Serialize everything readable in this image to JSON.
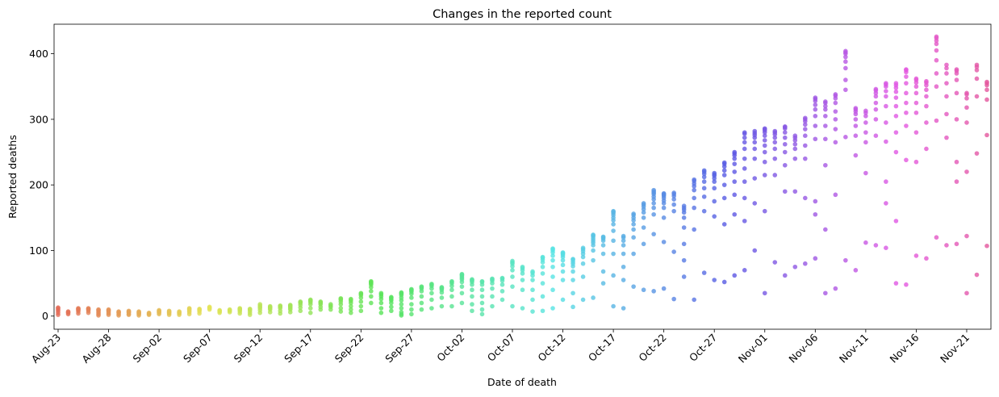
{
  "chart_data": {
    "type": "scatter",
    "title": "Changes in the reported count",
    "xlabel": "Date of death",
    "ylabel": "Reported deaths",
    "x_start": "Aug-23",
    "x_end": "Nov-22",
    "x_tick_labels": [
      "Aug-23",
      "Aug-28",
      "Sep-02",
      "Sep-07",
      "Sep-12",
      "Sep-17",
      "Sep-22",
      "Sep-27",
      "Oct-02",
      "Oct-07",
      "Oct-12",
      "Oct-17",
      "Oct-22",
      "Oct-27",
      "Nov-01",
      "Nov-06",
      "Nov-11",
      "Nov-16",
      "Nov-21"
    ],
    "y_ticks": [
      0,
      100,
      200,
      300,
      400
    ],
    "ylim": [
      -20,
      445
    ],
    "grid": false,
    "legend": "none",
    "marker_alpha": 0.8,
    "palette_note": "hue cycles by date from coral through olive, green, teal, blue, purple to pink",
    "points": [
      [
        "Aug-23",
        [
          2,
          5,
          8,
          10,
          12,
          13
        ]
      ],
      [
        "Aug-24",
        [
          3,
          5,
          6,
          7
        ]
      ],
      [
        "Aug-25",
        [
          4,
          7,
          9,
          10,
          11,
          12
        ]
      ],
      [
        "Aug-26",
        [
          5,
          8,
          10,
          11,
          12
        ]
      ],
      [
        "Aug-27",
        [
          1,
          3,
          5,
          7,
          9,
          10
        ]
      ],
      [
        "Aug-28",
        [
          2,
          4,
          6,
          8,
          9,
          10
        ]
      ],
      [
        "Aug-29",
        [
          1,
          3,
          5,
          6,
          7
        ]
      ],
      [
        "Aug-30",
        [
          2,
          3,
          5,
          6,
          7,
          8
        ]
      ],
      [
        "Aug-31",
        [
          1,
          3,
          4,
          5,
          6,
          7
        ]
      ],
      [
        "Sep-01",
        [
          2,
          3,
          4,
          5
        ]
      ],
      [
        "Sep-02",
        [
          3,
          5,
          6,
          7,
          8,
          9
        ]
      ],
      [
        "Sep-03",
        [
          2,
          4,
          5,
          6,
          7,
          8
        ]
      ],
      [
        "Sep-04",
        [
          2,
          4,
          5,
          6,
          7
        ]
      ],
      [
        "Sep-05",
        [
          3,
          6,
          8,
          10,
          11,
          12
        ]
      ],
      [
        "Sep-06",
        [
          4,
          7,
          9,
          10,
          11
        ]
      ],
      [
        "Sep-07",
        [
          10,
          12,
          13,
          14
        ]
      ],
      [
        "Sep-08",
        [
          5,
          7,
          8,
          9
        ]
      ],
      [
        "Sep-09",
        [
          6,
          8,
          9,
          10
        ]
      ],
      [
        "Sep-10",
        [
          4,
          7,
          9,
          10,
          11,
          12
        ]
      ],
      [
        "Sep-11",
        [
          2,
          5,
          8,
          10,
          11
        ]
      ],
      [
        "Sep-12",
        [
          5,
          9,
          12,
          14,
          16,
          18
        ]
      ],
      [
        "Sep-13",
        [
          6,
          10,
          12,
          13,
          14,
          15
        ]
      ],
      [
        "Sep-14",
        [
          4,
          8,
          12,
          14,
          15,
          16
        ]
      ],
      [
        "Sep-15",
        [
          6,
          10,
          12,
          14,
          15,
          16,
          17
        ]
      ],
      [
        "Sep-16",
        [
          8,
          13,
          17,
          20,
          21,
          22
        ]
      ],
      [
        "Sep-17",
        [
          5,
          12,
          18,
          21,
          23,
          24,
          25
        ]
      ],
      [
        "Sep-18",
        [
          10,
          14,
          18,
          20,
          21,
          22
        ]
      ],
      [
        "Sep-19",
        [
          10,
          14,
          16,
          18
        ]
      ],
      [
        "Sep-20",
        [
          7,
          12,
          18,
          22,
          25,
          26,
          27
        ]
      ],
      [
        "Sep-21",
        [
          5,
          10,
          15,
          20,
          23,
          25,
          26
        ]
      ],
      [
        "Sep-22",
        [
          8,
          15,
          22,
          28,
          32,
          34,
          35
        ]
      ],
      [
        "Sep-23",
        [
          20,
          30,
          38,
          44,
          48,
          50,
          51,
          52,
          53
        ]
      ],
      [
        "Sep-24",
        [
          5,
          12,
          20,
          26,
          30,
          33,
          35
        ]
      ],
      [
        "Sep-25",
        [
          8,
          14,
          20,
          24,
          26,
          28,
          29
        ]
      ],
      [
        "Sep-26",
        [
          1,
          3,
          6,
          12,
          18,
          24,
          28,
          32,
          34,
          35,
          36
        ]
      ],
      [
        "Sep-27",
        [
          3,
          10,
          18,
          28,
          34,
          37,
          39,
          40,
          41
        ]
      ],
      [
        "Sep-28",
        [
          10,
          20,
          30,
          38,
          42,
          44,
          45
        ]
      ],
      [
        "Sep-29",
        [
          12,
          25,
          35,
          42,
          46,
          48,
          49
        ]
      ],
      [
        "Sep-30",
        [
          15,
          28,
          36,
          40,
          42,
          43,
          44
        ]
      ],
      [
        "Oct-01",
        [
          15,
          30,
          40,
          46,
          50,
          52,
          53
        ]
      ],
      [
        "Oct-02",
        [
          20,
          35,
          45,
          52,
          56,
          58,
          60,
          62,
          63,
          64
        ]
      ],
      [
        "Oct-03",
        [
          8,
          18,
          30,
          40,
          48,
          52,
          54,
          55,
          56
        ]
      ],
      [
        "Oct-04",
        [
          3,
          10,
          20,
          30,
          40,
          48,
          52,
          53
        ]
      ],
      [
        "Oct-05",
        [
          15,
          30,
          42,
          50,
          54,
          56,
          57
        ]
      ],
      [
        "Oct-06",
        [
          25,
          38,
          48,
          54,
          57,
          58
        ]
      ],
      [
        "Oct-07",
        [
          15,
          45,
          60,
          70,
          76,
          80,
          82,
          84
        ]
      ],
      [
        "Oct-08",
        [
          12,
          40,
          55,
          65,
          70,
          73,
          75
        ]
      ],
      [
        "Oct-09",
        [
          7,
          25,
          40,
          55,
          62,
          66,
          68
        ]
      ],
      [
        "Oct-10",
        [
          8,
          30,
          50,
          65,
          75,
          82,
          86,
          89,
          90
        ]
      ],
      [
        "Oct-11",
        [
          12,
          40,
          60,
          75,
          85,
          92,
          97,
          100,
          102,
          103
        ]
      ],
      [
        "Oct-12",
        [
          25,
          55,
          68,
          78,
          85,
          90,
          93,
          95,
          96,
          97
        ]
      ],
      [
        "Oct-13",
        [
          14,
          35,
          55,
          68,
          76,
          80,
          83,
          86,
          87
        ]
      ],
      [
        "Oct-14",
        [
          25,
          60,
          80,
          90,
          95,
          99,
          102,
          104
        ]
      ],
      [
        "Oct-15",
        [
          28,
          85,
          100,
          108,
          112,
          115,
          118,
          121,
          123,
          124
        ]
      ],
      [
        "Oct-16",
        [
          50,
          68,
          95,
          108,
          115,
          118,
          120,
          121
        ]
      ],
      [
        "Oct-17",
        [
          15,
          62,
          95,
          115,
          130,
          140,
          146,
          150,
          154,
          157,
          159,
          160
        ]
      ],
      [
        "Oct-18",
        [
          12,
          55,
          75,
          95,
          108,
          115,
          120,
          122
        ]
      ],
      [
        "Oct-19",
        [
          45,
          95,
          120,
          132,
          140,
          146,
          150,
          154,
          156
        ]
      ],
      [
        "Oct-20",
        [
          40,
          110,
          135,
          150,
          158,
          163,
          167,
          170,
          172
        ]
      ],
      [
        "Oct-21",
        [
          38,
          125,
          155,
          165,
          172,
          178,
          182,
          186,
          188,
          190,
          192
        ]
      ],
      [
        "Oct-22",
        [
          42,
          113,
          150,
          165,
          172,
          176,
          180,
          183,
          185,
          186,
          187
        ]
      ],
      [
        "Oct-23",
        [
          26,
          98,
          160,
          170,
          178,
          183,
          186,
          188
        ]
      ],
      [
        "Oct-24",
        [
          60,
          85,
          110,
          135,
          150,
          158,
          162,
          165,
          168
        ]
      ],
      [
        "Oct-25",
        [
          25,
          132,
          165,
          180,
          192,
          198,
          202,
          206,
          208
        ]
      ],
      [
        "Oct-26",
        [
          66,
          160,
          182,
          195,
          205,
          212,
          217,
          220,
          222
        ]
      ],
      [
        "Oct-27",
        [
          55,
          152,
          175,
          195,
          205,
          210,
          214,
          216,
          218
        ]
      ],
      [
        "Oct-28",
        [
          52,
          140,
          180,
          200,
          215,
          222,
          228,
          232,
          234
        ]
      ],
      [
        "Oct-29",
        [
          62,
          155,
          185,
          205,
          220,
          232,
          240,
          245,
          248,
          250
        ]
      ],
      [
        "Oct-30",
        [
          70,
          145,
          180,
          205,
          225,
          240,
          255,
          265,
          272,
          278,
          280
        ]
      ],
      [
        "Oct-31",
        [
          100,
          172,
          210,
          240,
          255,
          265,
          272,
          276,
          279,
          282
        ]
      ],
      [
        "Nov-01",
        [
          35,
          160,
          215,
          235,
          250,
          260,
          268,
          275,
          280,
          283,
          285,
          286
        ]
      ],
      [
        "Nov-02",
        [
          82,
          215,
          240,
          255,
          265,
          272,
          277,
          280,
          282
        ]
      ],
      [
        "Nov-03",
        [
          62,
          190,
          230,
          250,
          262,
          272,
          280,
          286,
          288,
          289
        ]
      ],
      [
        "Nov-04",
        [
          75,
          190,
          240,
          255,
          262,
          268,
          272,
          275
        ]
      ],
      [
        "Nov-05",
        [
          80,
          180,
          240,
          260,
          275,
          285,
          292,
          297,
          300,
          302
        ]
      ],
      [
        "Nov-06",
        [
          88,
          155,
          175,
          270,
          290,
          305,
          315,
          322,
          328,
          331,
          333
        ]
      ],
      [
        "Nov-07",
        [
          35,
          132,
          230,
          270,
          290,
          305,
          315,
          320,
          325,
          327
        ]
      ],
      [
        "Nov-08",
        [
          42,
          185,
          265,
          285,
          300,
          312,
          325,
          332,
          336,
          338
        ]
      ],
      [
        "Nov-09",
        [
          85,
          273,
          345,
          360,
          378,
          388,
          395,
          400,
          402,
          404
        ]
      ],
      [
        "Nov-10",
        [
          70,
          245,
          275,
          290,
          300,
          308,
          312,
          315,
          317
        ]
      ],
      [
        "Nov-11",
        [
          112,
          218,
          265,
          280,
          295,
          305,
          310,
          313
        ]
      ],
      [
        "Nov-12",
        [
          108,
          275,
          300,
          315,
          325,
          335,
          340,
          344,
          346
        ]
      ],
      [
        "Nov-13",
        [
          104,
          172,
          205,
          266,
          295,
          320,
          335,
          343,
          350,
          353,
          355
        ]
      ],
      [
        "Nov-14",
        [
          50,
          145,
          250,
          280,
          305,
          320,
          333,
          342,
          348,
          352,
          355
        ]
      ],
      [
        "Nov-15",
        [
          48,
          238,
          290,
          310,
          325,
          340,
          355,
          365,
          372,
          375,
          376
        ]
      ],
      [
        "Nov-16",
        [
          92,
          235,
          280,
          310,
          325,
          340,
          350,
          356,
          360,
          362
        ]
      ],
      [
        "Nov-17",
        [
          88,
          255,
          295,
          320,
          335,
          345,
          352,
          356,
          358
        ]
      ],
      [
        "Nov-18",
        [
          120,
          298,
          350,
          370,
          390,
          405,
          415,
          420,
          424,
          426
        ]
      ],
      [
        "Nov-19",
        [
          108,
          272,
          308,
          335,
          355,
          370,
          378,
          383
        ]
      ],
      [
        "Nov-20",
        [
          110,
          205,
          235,
          300,
          340,
          360,
          370,
          374,
          376
        ]
      ],
      [
        "Nov-21",
        [
          35,
          122,
          220,
          295,
          318,
          332,
          338,
          340
        ]
      ],
      [
        "Nov-22",
        [
          63,
          248,
          335,
          362,
          375,
          380,
          383
        ]
      ],
      [
        "Nov-23",
        [
          107,
          276,
          330,
          345,
          352,
          355,
          357
        ]
      ]
    ]
  }
}
